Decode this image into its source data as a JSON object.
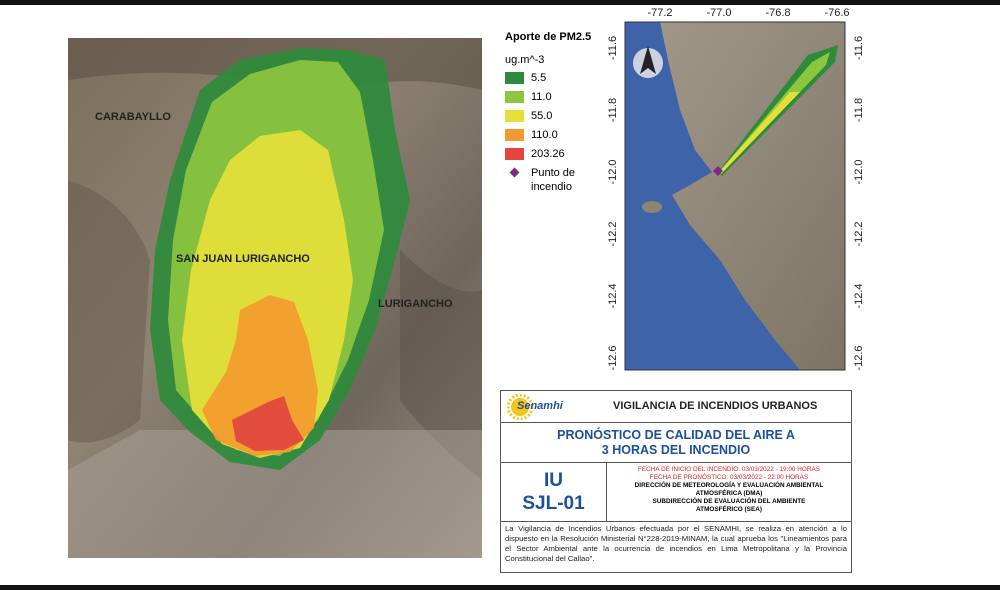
{
  "left_map": {
    "labels": [
      "CARABAYLLO",
      "SAN JUAN LURIGANCHO",
      "LURIGANCHO"
    ]
  },
  "legend": {
    "title": "Aporte de PM2.5",
    "unit": "ug.m^-3",
    "items": [
      {
        "label": "5.5",
        "color": "#2e8b3c"
      },
      {
        "label": "11.0",
        "color": "#8cc63f"
      },
      {
        "label": "55.0",
        "color": "#e6df3a"
      },
      {
        "label": "110.0",
        "color": "#f39a2e"
      },
      {
        "label": "203.26",
        "color": "#e2453f"
      }
    ],
    "point": "Punto de incendio",
    "point_color": "#7b2a8c"
  },
  "right_map": {
    "lon_ticks": [
      "-77.2",
      "-77.0",
      "-76.8",
      "-76.6"
    ],
    "lat_ticks": [
      "-11.6",
      "-11.8",
      "-12.0",
      "-12.2",
      "-12.4",
      "-12.6"
    ]
  },
  "info_box": {
    "logo": "Senamhi",
    "header": "VIGILANCIA DE INCENDIOS URBANOS",
    "title": "PRONÓSTICO DE CALIDAD DEL AIRE A 3 HORAS DEL INCENDIO",
    "code_lines": [
      "IU",
      "SJL-01"
    ],
    "start_date": "FECHA DE INICIO DEL INCENDIO: 03/03/2022 - 19:00 HORAS",
    "forecast_date": "FECHA DE PRONÓSTICO: 03/03/2022 - 22:00 HORAS",
    "direction": "DIRECCIÓN DE METEOROLOGÍA Y EVALUACIÓN AMBIENTAL ATMOSFÉRICA (DMA)",
    "subdirection": "SUBDIRECCIÓN DE EVALUACIÓN DEL AMBIENTE ATMOSFÉRICO (SEA)",
    "description": "La Vigilancia de Incendios Urbanos efectuada por el SENAMHI, se realiza en atención a lo dispuesto en la Resolución Ministerial N°228-2019-MINAM, la cual aprueba los \"Lineamientos para el Sector Ambiental ante la ocurrencia de incendios en Lima Metropolitana y la Provincia Constitucional del Callao\"."
  }
}
